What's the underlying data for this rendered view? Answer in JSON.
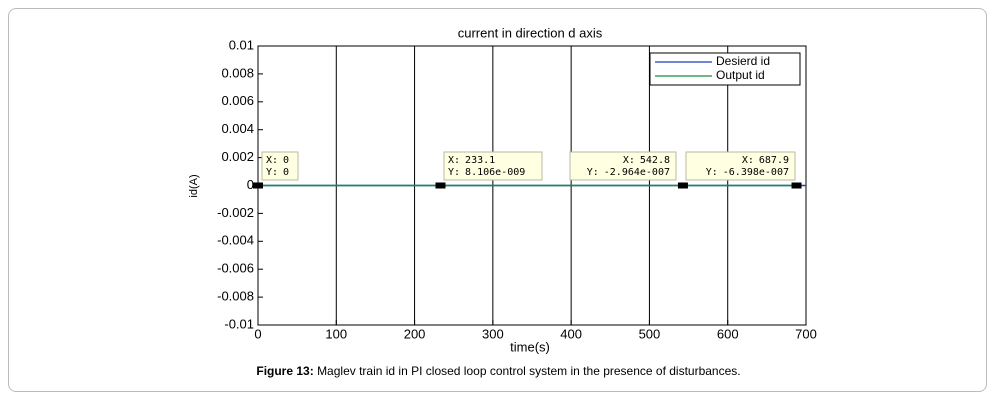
{
  "chart_data": {
    "type": "line",
    "title": "current in direction d axis",
    "xlabel": "time(s)",
    "ylabel": "id(A)",
    "xlim": [
      0,
      700
    ],
    "xticks": [
      0,
      100,
      200,
      300,
      400,
      500,
      600,
      700
    ],
    "ylim": [
      -0.01,
      0.01
    ],
    "yticks": [
      -0.01,
      -0.008,
      -0.006,
      -0.004,
      -0.002,
      0,
      0.002,
      0.004,
      0.006,
      0.008,
      0.01
    ],
    "grid": "x",
    "legend_position": "upper right",
    "series": [
      {
        "name": "Desierd id",
        "color": "#1f3fbf",
        "x": [
          0,
          700
        ],
        "values": [
          0,
          0
        ]
      },
      {
        "name": "Output id",
        "color": "#1a8f3a",
        "x": [
          0,
          233.1,
          542.8,
          687.9
        ],
        "values": [
          0,
          8.106e-09,
          -2.964e-07,
          -6.398e-07
        ]
      }
    ],
    "datatip_x_prefix": "X:",
    "datatip_y_prefix": "Y:",
    "datatips": [
      {
        "x": 0,
        "y": 0
      },
      {
        "x": 233.1,
        "y": {
          "value": 8.106e-09,
          "label": "8.106e-009"
        }
      },
      {
        "x": 542.8,
        "y": {
          "value": -2.964e-07,
          "label": "-2.964e-007"
        }
      },
      {
        "x": 687.9,
        "y": {
          "value": -6.398e-07,
          "label": "-6.398e-007"
        }
      }
    ],
    "caption_label": "Figure 13:",
    "caption_text": "Maglev train id in PI closed loop control system in the presence of disturbances."
  }
}
